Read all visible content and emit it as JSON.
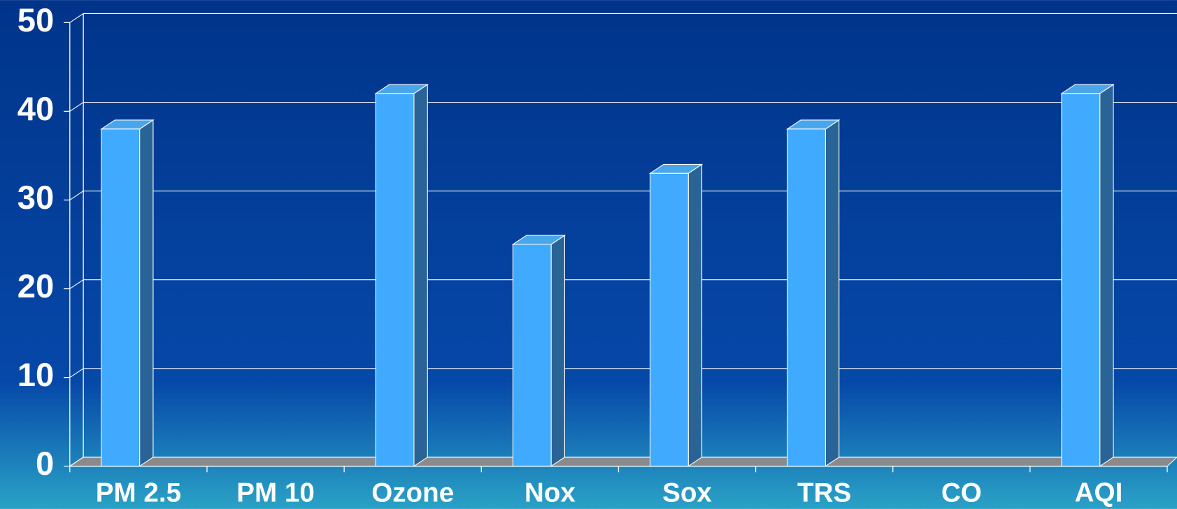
{
  "chart_data": {
    "type": "bar3d",
    "categories": [
      "PM 2.5",
      "PM 10",
      "Ozone",
      "Nox",
      "Sox",
      "TRS",
      "CO",
      "AQI"
    ],
    "values": [
      38,
      null,
      42,
      25,
      33,
      38,
      null,
      42
    ],
    "color": "#40aaff",
    "ylim": [
      0,
      50
    ],
    "yticks": [
      0,
      10,
      20,
      30,
      40,
      50
    ],
    "grid": true
  }
}
